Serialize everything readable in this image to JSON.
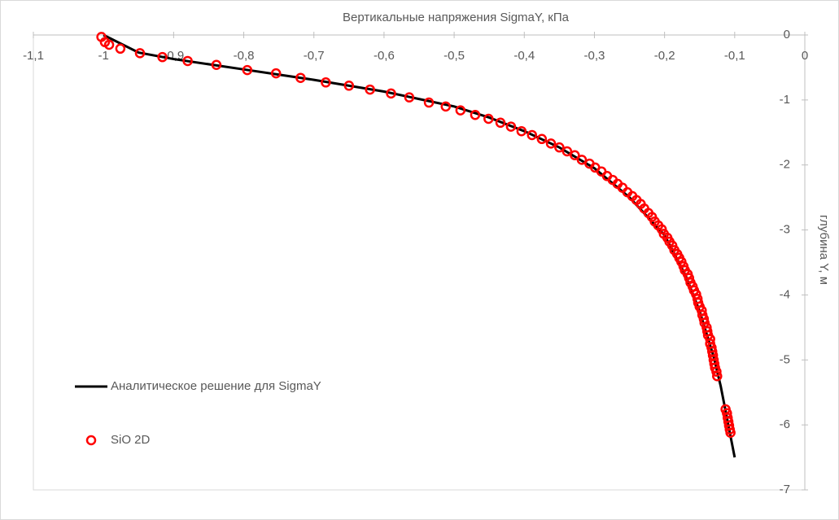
{
  "chart_data": {
    "type": "scatter",
    "title": "Вертикальные напряжения SigmaY, кПа",
    "y_label": "глубина Y, м",
    "xlim": [
      -1.1,
      0
    ],
    "ylim": [
      -7,
      0
    ],
    "xticks": [
      {
        "value": -1.1,
        "label": "-1,1"
      },
      -1,
      {
        "value": -0.9,
        "label": "-0,9"
      },
      {
        "value": -0.8,
        "label": "-0,8"
      },
      {
        "value": -0.7,
        "label": "-0,7"
      },
      {
        "value": -0.6,
        "label": "-0,6"
      },
      {
        "value": -0.5,
        "label": "-0,5"
      },
      {
        "value": -0.4,
        "label": "-0,4"
      },
      {
        "value": -0.3,
        "label": "-0,3"
      },
      {
        "value": -0.2,
        "label": "-0,2"
      },
      {
        "value": -0.1,
        "label": "-0,1"
      },
      0
    ],
    "yticks": [
      0,
      -1,
      -2,
      -3,
      -4,
      -5,
      -6,
      -7
    ],
    "grid": false,
    "series": [
      {
        "name": "Аналитическое решение для SigmaY",
        "color": "#000000",
        "style": "line",
        "x": [
          -1.0,
          -0.95,
          -0.9,
          -0.8,
          -0.7,
          -0.6,
          -0.5,
          -0.45,
          -0.4,
          -0.35,
          -0.3,
          -0.25,
          -0.2,
          -0.17,
          -0.15,
          -0.13,
          -0.12,
          -0.11,
          -0.1
        ],
        "values": [
          0,
          -0.27,
          -0.37,
          -0.53,
          -0.69,
          -0.87,
          -1.1,
          -1.27,
          -1.48,
          -1.73,
          -2.05,
          -2.5,
          -3.08,
          -3.7,
          -4.25,
          -4.95,
          -5.4,
          -5.95,
          -6.5
        ]
      },
      {
        "name": "SiO 2D",
        "color": "#ff0000",
        "style": "marker",
        "x": [
          -1.003,
          -0.998,
          -0.992,
          -0.976,
          -0.948,
          -0.916,
          -0.88,
          -0.839,
          -0.795,
          -0.754,
          -0.719,
          -0.683,
          -0.65,
          -0.62,
          -0.59,
          -0.564,
          -0.536,
          -0.512,
          -0.491,
          -0.47,
          -0.451,
          -0.434,
          -0.419,
          -0.404,
          -0.389,
          -0.375,
          -0.362,
          -0.35,
          -0.339,
          -0.328,
          -0.318,
          -0.307,
          -0.299,
          -0.29,
          -0.282,
          -0.274,
          -0.267,
          -0.26,
          -0.253,
          -0.246,
          -0.24,
          -0.234,
          -0.229,
          -0.223,
          -0.218,
          -0.214,
          -0.209,
          -0.204,
          -0.201,
          -0.196,
          -0.193,
          -0.189,
          -0.186,
          -0.182,
          -0.179,
          -0.176,
          -0.173,
          -0.171,
          -0.167,
          -0.165,
          -0.163,
          -0.16,
          -0.158,
          -0.155,
          -0.153,
          -0.152,
          -0.15,
          -0.147,
          -0.146,
          -0.144,
          -0.143,
          -0.14,
          -0.139,
          -0.138,
          -0.135,
          -0.135,
          -0.133,
          -0.132,
          -0.131,
          -0.13,
          -0.129,
          -0.128,
          -0.126,
          -0.125,
          -0.113,
          -0.111,
          -0.11,
          -0.109,
          -0.108,
          -0.107,
          -0.106
        ],
        "values": [
          -0.03,
          -0.11,
          -0.15,
          -0.21,
          -0.28,
          -0.34,
          -0.4,
          -0.46,
          -0.54,
          -0.59,
          -0.66,
          -0.73,
          -0.78,
          -0.84,
          -0.9,
          -0.96,
          -1.04,
          -1.1,
          -1.16,
          -1.23,
          -1.29,
          -1.35,
          -1.41,
          -1.48,
          -1.54,
          -1.6,
          -1.67,
          -1.73,
          -1.79,
          -1.85,
          -1.92,
          -1.98,
          -2.04,
          -2.1,
          -2.17,
          -2.23,
          -2.29,
          -2.35,
          -2.42,
          -2.48,
          -2.54,
          -2.6,
          -2.67,
          -2.74,
          -2.8,
          -2.87,
          -2.93,
          -2.99,
          -3.06,
          -3.12,
          -3.18,
          -3.24,
          -3.31,
          -3.37,
          -3.43,
          -3.49,
          -3.56,
          -3.62,
          -3.68,
          -3.74,
          -3.81,
          -3.87,
          -3.93,
          -3.99,
          -4.06,
          -4.12,
          -4.18,
          -4.24,
          -4.31,
          -4.37,
          -4.43,
          -4.5,
          -4.56,
          -4.62,
          -4.68,
          -4.75,
          -4.81,
          -4.87,
          -4.93,
          -5.0,
          -5.06,
          -5.12,
          -5.18,
          -5.25,
          -5.76,
          -5.82,
          -5.89,
          -5.95,
          -6.01,
          -6.07,
          -6.12
        ]
      }
    ]
  }
}
